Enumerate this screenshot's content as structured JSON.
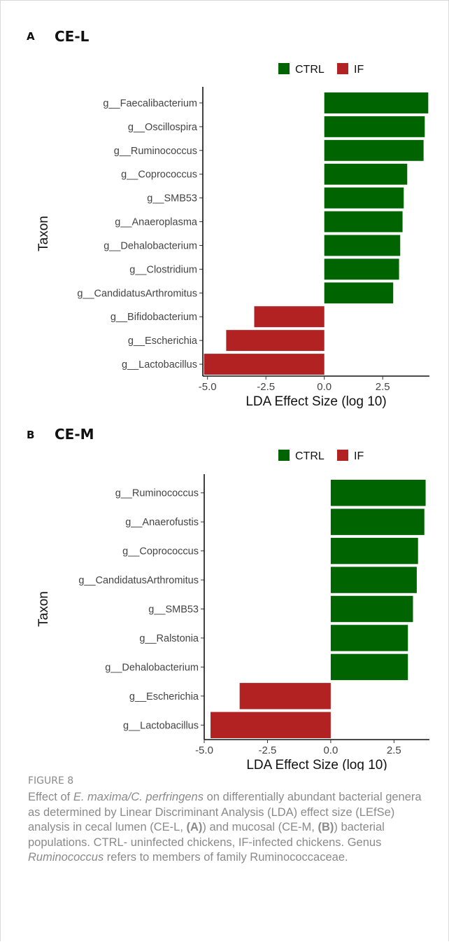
{
  "figure": {
    "label": "FIGURE 8",
    "caption_parts": [
      {
        "t": "Effect of "
      },
      {
        "t": "E. maxima/C. perfringens",
        "i": true
      },
      {
        "t": " on differentially abundant bacterial genera as determined by Linear Discriminant Analysis (LDA) effect size (LEfSe) analysis in cecal lumen (CE-L, "
      },
      {
        "t": "(A)",
        "b": true
      },
      {
        "t": ") and mucosal (CE-M, "
      },
      {
        "t": "(B)",
        "b": true
      },
      {
        "t": ") bacterial populations. CTRL- uninfected chickens, IF-infected chickens. Genus "
      },
      {
        "t": "Ruminococcus",
        "i": true
      },
      {
        "t": " refers to members of family Ruminococcaceae."
      }
    ]
  },
  "colors": {
    "CTRL": "#006400",
    "IF": "#B22222"
  },
  "chart_data": [
    {
      "type": "bar",
      "orientation": "horizontal",
      "panel": "A",
      "title": "CE-L",
      "xlabel": "LDA Effect Size (log 10)",
      "ylabel": "Taxon",
      "xlim": [
        -5.2,
        4.5
      ],
      "xticks": [
        -5.0,
        -2.5,
        0.0,
        2.5
      ],
      "xtick_labels": [
        "-5.0",
        "-2.5",
        "0.0",
        "2.5"
      ],
      "legend": {
        "position": "top-right",
        "entries": [
          "CTRL",
          "IF"
        ]
      },
      "categories": [
        "g__Faecalibacterium",
        "g__Oscillospira",
        "g__Ruminococcus",
        "g__Coprococcus",
        "g__SMB53",
        "g__Anaeroplasma",
        "g__Dehalobacterium",
        "g__Clostridium",
        "g__CandidatusArthromitus",
        "g__Bifidobacterium",
        "g__Escherichia",
        "g__Lactobacillus"
      ],
      "values": [
        4.45,
        4.3,
        4.25,
        3.55,
        3.4,
        3.35,
        3.25,
        3.2,
        2.95,
        -3.0,
        -4.2,
        -5.15
      ],
      "groups": [
        "CTRL",
        "CTRL",
        "CTRL",
        "CTRL",
        "CTRL",
        "CTRL",
        "CTRL",
        "CTRL",
        "CTRL",
        "IF",
        "IF",
        "IF"
      ]
    },
    {
      "type": "bar",
      "orientation": "horizontal",
      "panel": "B",
      "title": "CE-M",
      "xlabel": "LDA Effect Size (log 10)",
      "ylabel": "Taxon",
      "xlim": [
        -5.0,
        3.9
      ],
      "xticks": [
        -5.0,
        -2.5,
        0.0,
        2.5
      ],
      "xtick_labels": [
        "-5.0",
        "-2.5",
        "0.0",
        "2.5"
      ],
      "legend": {
        "position": "top-right",
        "entries": [
          "CTRL",
          "IF"
        ]
      },
      "categories": [
        "g__Ruminococcus",
        "g__Anaerofustis",
        "g__Coprococcus",
        "g__CandidatusArthromitus",
        "g__SMB53",
        "g__Ralstonia",
        "g__Dehalobacterium",
        "g__Escherichia",
        "g__Lactobacillus"
      ],
      "values": [
        3.75,
        3.7,
        3.45,
        3.4,
        3.25,
        3.05,
        3.05,
        -3.6,
        -4.75
      ],
      "groups": [
        "CTRL",
        "CTRL",
        "CTRL",
        "CTRL",
        "CTRL",
        "CTRL",
        "CTRL",
        "IF",
        "IF"
      ]
    }
  ]
}
